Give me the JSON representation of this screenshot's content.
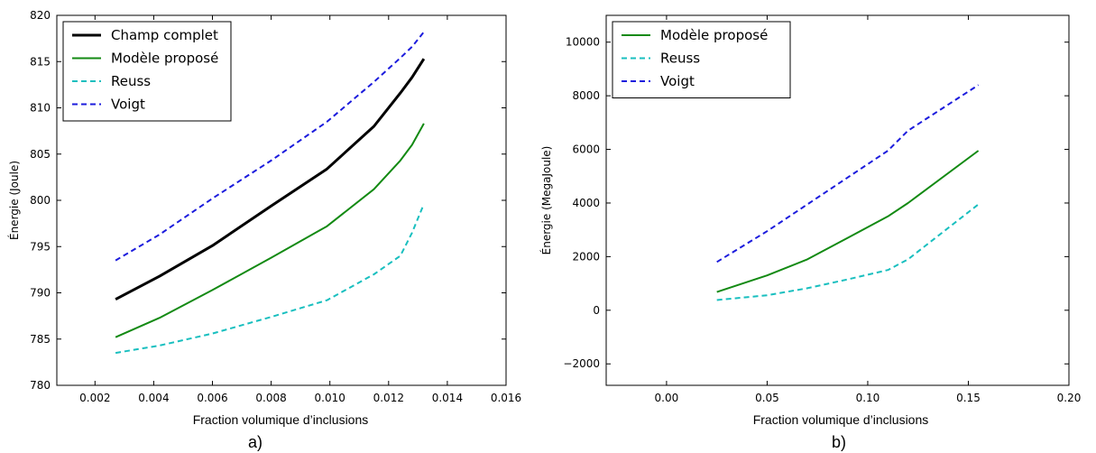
{
  "chart_data": [
    {
      "type": "line",
      "panel_label": "a)",
      "xlabel": "Fraction volumique d’inclusions",
      "ylabel": "Énergie (Joule)",
      "xlim": [
        0.0007,
        0.016
      ],
      "ylim": [
        780,
        820
      ],
      "xticks": [
        0.002,
        0.004,
        0.006,
        0.008,
        0.01,
        0.012,
        0.014,
        0.016
      ],
      "xtick_labels": [
        "0.002",
        "0.004",
        "0.006",
        "0.008",
        "0.010",
        "0.012",
        "0.014",
        "0.016"
      ],
      "yticks": [
        780,
        785,
        790,
        795,
        800,
        805,
        810,
        815,
        820
      ],
      "ytick_labels": [
        "780",
        "785",
        "790",
        "795",
        "800",
        "805",
        "810",
        "815",
        "820"
      ],
      "grid": false,
      "legend_position": "top-left",
      "series": [
        {
          "name": "Champ complet",
          "color": "#000000",
          "dash": "solid",
          "width": 3,
          "x": [
            0.0027,
            0.0042,
            0.006,
            0.008,
            0.0099,
            0.0115,
            0.0124,
            0.0128,
            0.0132
          ],
          "y": [
            789.3,
            791.8,
            795.1,
            799.4,
            803.4,
            808.0,
            811.6,
            813.3,
            815.3
          ]
        },
        {
          "name": "Modèle proposé",
          "color": "#138a13",
          "dash": "solid",
          "width": 2,
          "x": [
            0.0027,
            0.0042,
            0.006,
            0.008,
            0.0099,
            0.0115,
            0.0124,
            0.0128,
            0.0132
          ],
          "y": [
            785.2,
            787.3,
            790.3,
            793.8,
            797.2,
            801.2,
            804.3,
            806.0,
            808.3
          ]
        },
        {
          "name": "Reuss",
          "color": "#19bfbf",
          "dash": "dashed",
          "width": 2,
          "x": [
            0.0027,
            0.0042,
            0.006,
            0.008,
            0.0099,
            0.0115,
            0.0124,
            0.0128,
            0.0132
          ],
          "y": [
            783.5,
            784.3,
            785.6,
            787.4,
            789.2,
            792.0,
            794.0,
            796.5,
            799.6
          ]
        },
        {
          "name": "Voigt",
          "color": "#1c1cdd",
          "dash": "dashed",
          "width": 2,
          "x": [
            0.0027,
            0.0042,
            0.006,
            0.008,
            0.0099,
            0.0115,
            0.0124,
            0.0128,
            0.0132
          ],
          "y": [
            793.5,
            796.3,
            800.2,
            804.3,
            808.5,
            812.8,
            815.4,
            816.6,
            818.2
          ]
        }
      ]
    },
    {
      "type": "line",
      "panel_label": "b)",
      "xlabel": "Fraction volumique d’inclusions",
      "ylabel": "Énergie (MegaJoule)",
      "xlim": [
        -0.03,
        0.2
      ],
      "ylim": [
        -2800,
        11000
      ],
      "xticks": [
        0.0,
        0.05,
        0.1,
        0.15,
        0.2
      ],
      "xtick_labels": [
        "0.00",
        "0.05",
        "0.10",
        "0.15",
        "0.20"
      ],
      "yticks": [
        -2000,
        0,
        2000,
        4000,
        6000,
        8000,
        10000
      ],
      "ytick_labels": [
        "−2000",
        "0",
        "2000",
        "4000",
        "6000",
        "8000",
        "10000"
      ],
      "grid": false,
      "legend_position": "top-left",
      "series": [
        {
          "name": "Modèle proposé",
          "color": "#138a13",
          "dash": "solid",
          "width": 2,
          "x": [
            0.025,
            0.05,
            0.07,
            0.09,
            0.11,
            0.12,
            0.155
          ],
          "y": [
            680,
            1300,
            1900,
            2700,
            3500,
            4000,
            5950
          ]
        },
        {
          "name": "Reuss",
          "color": "#19bfbf",
          "dash": "dashed",
          "width": 2,
          "x": [
            0.025,
            0.05,
            0.07,
            0.09,
            0.11,
            0.12,
            0.155
          ],
          "y": [
            380,
            560,
            820,
            1150,
            1500,
            1900,
            3950
          ]
        },
        {
          "name": "Voigt",
          "color": "#1c1cdd",
          "dash": "dashed",
          "width": 2,
          "x": [
            0.025,
            0.05,
            0.07,
            0.09,
            0.11,
            0.12,
            0.155
          ],
          "y": [
            1800,
            2950,
            3950,
            4950,
            5950,
            6700,
            8400
          ]
        }
      ]
    }
  ]
}
